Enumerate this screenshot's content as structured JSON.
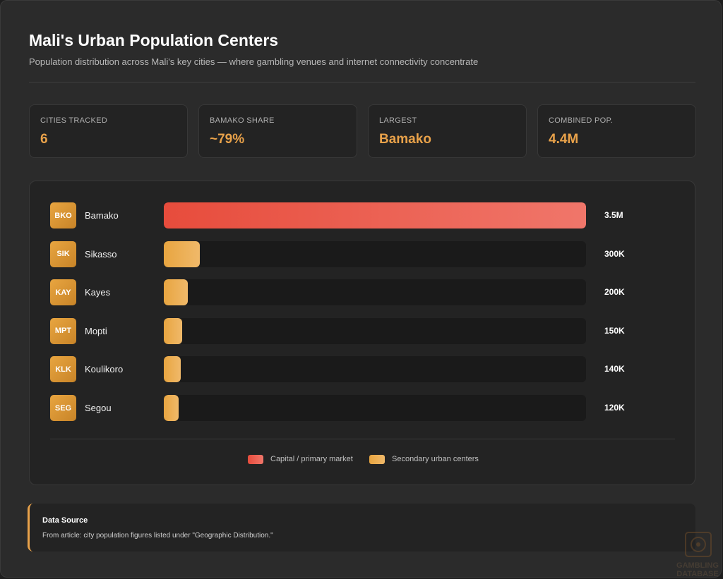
{
  "header": {
    "title": "Mali's Urban Population Centers",
    "subtitle": "Population distribution across Mali's key cities — where gambling venues and internet connectivity concentrate"
  },
  "stats": [
    {
      "label": "CITIES TRACKED",
      "value": "6"
    },
    {
      "label": "BAMAKO SHARE",
      "value": "~79%"
    },
    {
      "label": "LARGEST",
      "value": "Bamako"
    },
    {
      "label": "COMBINED POP.",
      "value": "4.4M"
    }
  ],
  "chart_data": {
    "type": "bar",
    "orientation": "horizontal",
    "title": "",
    "xlabel": "",
    "ylabel": "",
    "xlim": [
      0,
      3500000
    ],
    "grid": false,
    "legend_position": "bottom-center",
    "categories": [
      "Bamako",
      "Sikasso",
      "Kayes",
      "Mopti",
      "Koulikoro",
      "Segou"
    ],
    "codes": [
      "BKO",
      "SIK",
      "KAY",
      "MPT",
      "KLK",
      "SEG"
    ],
    "values": [
      3500000,
      300000,
      200000,
      150000,
      140000,
      120000
    ],
    "value_labels": [
      "3.5M",
      "300K",
      "200K",
      "150K",
      "140K",
      "120K"
    ],
    "groups": [
      "primary",
      "secondary",
      "secondary",
      "secondary",
      "secondary",
      "secondary"
    ],
    "legend": [
      {
        "key": "primary",
        "label": "Capital / primary market",
        "color": "#e74c3c"
      },
      {
        "key": "secondary",
        "label": "Secondary urban centers",
        "color": "#e8a540"
      }
    ]
  },
  "source": {
    "title": "Data Source",
    "text": "From article: city population figures listed under \"Geographic Distribution.\""
  },
  "watermark": {
    "line1": "GAMBLING",
    "line2": "DATABASE"
  },
  "colors": {
    "accent": "#e9a24a",
    "primary_bar": "#e74c3c",
    "secondary_bar": "#e8a540"
  }
}
